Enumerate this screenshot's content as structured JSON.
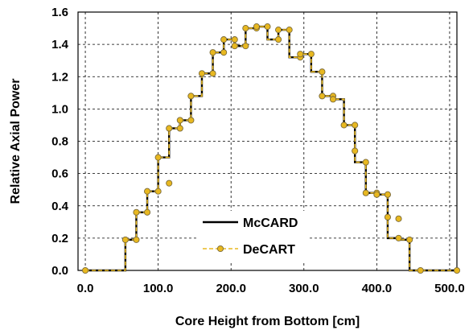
{
  "chart_data": {
    "type": "line",
    "title": "",
    "xlabel": "Core Height from Bottom [cm]",
    "ylabel": "Relative Axial Power",
    "xlim": [
      -10,
      510
    ],
    "ylim": [
      0,
      1.6
    ],
    "x_ticks": [
      0,
      100,
      200,
      300,
      400,
      500
    ],
    "x_tick_labels": [
      "0.0",
      "100.0",
      "200.0",
      "300.0",
      "400.0",
      "500.0"
    ],
    "y_ticks": [
      0,
      0.2,
      0.4,
      0.6,
      0.8,
      1.0,
      1.2,
      1.4,
      1.6
    ],
    "y_tick_labels": [
      "0.0",
      "0.2",
      "0.4",
      "0.6",
      "0.8",
      "1.0",
      "1.2",
      "1.4",
      "1.6"
    ],
    "grid": "dashed",
    "legend_position": "bottom-center",
    "series": [
      {
        "name": "McCARD",
        "style": "solid",
        "color": "#000000",
        "x": [
          0,
          55,
          55,
          70,
          70,
          85,
          85,
          100,
          100,
          115,
          115,
          130,
          130,
          145,
          145,
          160,
          160,
          175,
          175,
          190,
          190,
          205,
          205,
          220,
          220,
          235,
          235,
          250,
          250,
          265,
          265,
          280,
          280,
          295,
          295,
          310,
          310,
          325,
          325,
          340,
          340,
          355,
          355,
          370,
          370,
          385,
          385,
          400,
          400,
          415,
          415,
          430,
          430,
          445,
          445,
          510
        ],
        "y": [
          0,
          0,
          0.19,
          0.19,
          0.36,
          0.36,
          0.49,
          0.49,
          0.7,
          0.7,
          0.88,
          0.88,
          0.93,
          0.93,
          1.08,
          1.08,
          1.22,
          1.22,
          1.35,
          1.35,
          1.43,
          1.43,
          1.39,
          1.39,
          1.5,
          1.5,
          1.51,
          1.51,
          1.43,
          1.43,
          1.49,
          1.49,
          1.32,
          1.32,
          1.34,
          1.34,
          1.23,
          1.23,
          1.08,
          1.08,
          1.06,
          1.06,
          0.9,
          0.9,
          0.67,
          0.67,
          0.48,
          0.48,
          0.47,
          0.47,
          0.2,
          0.2,
          0.19,
          0.19,
          0,
          0
        ]
      },
      {
        "name": "DeCART",
        "style": "dashed-markers",
        "color": "#e8b820",
        "marker_color": "#e8b820",
        "x": [
          0,
          55,
          55,
          70,
          70,
          85,
          85,
          100,
          100,
          115,
          115,
          130,
          130,
          145,
          145,
          160,
          160,
          175,
          175,
          190,
          190,
          205,
          205,
          220,
          220,
          235,
          235,
          250,
          250,
          265,
          265,
          280,
          280,
          295,
          295,
          310,
          310,
          325,
          325,
          340,
          340,
          355,
          355,
          370,
          370,
          385,
          385,
          400,
          400,
          415,
          415,
          430,
          430,
          445,
          445,
          510
        ],
        "y": [
          0,
          0,
          0.19,
          0.19,
          0.36,
          0.36,
          0.49,
          0.49,
          0.7,
          0.7,
          0.88,
          0.88,
          0.93,
          0.93,
          1.08,
          1.08,
          1.22,
          1.22,
          1.35,
          1.35,
          1.43,
          1.43,
          1.39,
          1.39,
          1.5,
          1.5,
          1.51,
          1.51,
          1.43,
          1.43,
          1.49,
          1.49,
          1.32,
          1.32,
          1.34,
          1.34,
          1.23,
          1.23,
          1.08,
          1.08,
          1.06,
          1.06,
          0.9,
          0.9,
          0.67,
          0.67,
          0.48,
          0.48,
          0.47,
          0.47,
          0.2,
          0.2,
          0.19,
          0.19,
          0,
          0
        ],
        "marker_x": [
          0,
          55,
          70,
          70,
          85,
          85,
          100,
          100,
          115,
          115,
          130,
          130,
          145,
          145,
          160,
          175,
          175,
          190,
          190,
          205,
          205,
          220,
          220,
          235,
          235,
          250,
          265,
          265,
          280,
          295,
          295,
          310,
          325,
          325,
          340,
          340,
          355,
          370,
          370,
          385,
          385,
          400,
          400,
          415,
          415,
          430,
          430,
          445,
          460,
          510
        ],
        "marker_y": [
          0,
          0.19,
          0.19,
          0.36,
          0.36,
          0.49,
          0.49,
          0.7,
          0.54,
          0.88,
          0.88,
          0.93,
          0.93,
          1.08,
          1.22,
          1.22,
          1.35,
          1.35,
          1.43,
          1.43,
          1.39,
          1.39,
          1.5,
          1.5,
          1.51,
          1.51,
          1.43,
          1.49,
          1.49,
          1.32,
          1.34,
          1.34,
          1.23,
          1.08,
          1.08,
          1.06,
          0.9,
          0.9,
          0.74,
          0.67,
          0.48,
          0.48,
          0.47,
          0.47,
          0.33,
          0.2,
          0.32,
          0.19,
          0,
          0
        ]
      }
    ]
  }
}
